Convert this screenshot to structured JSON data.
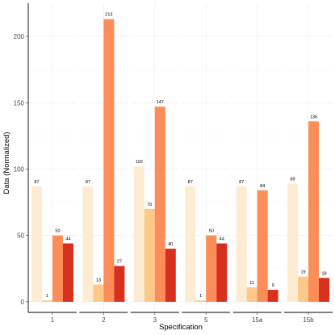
{
  "chart_data": {
    "type": "bar",
    "xlabel": "Specification",
    "ylabel": "Data (Normalized)",
    "categories": [
      "1",
      "2",
      "3",
      "5",
      "15a",
      "15b"
    ],
    "series": [
      {
        "color": "#fdebd2",
        "values": [
          87,
          87,
          102,
          87,
          87,
          89
        ],
        "labels": [
          "87",
          "87",
          "102",
          "87",
          "87",
          "89"
        ]
      },
      {
        "color": "#fdc98a",
        "values": [
          1,
          13,
          70,
          1,
          11,
          19
        ],
        "labels": [
          "1",
          "13",
          "70",
          "1",
          "11",
          "19"
        ]
      },
      {
        "color": "#fc8d59",
        "values": [
          50,
          213,
          147,
          50,
          84,
          136
        ],
        "labels": [
          "50",
          "213",
          "147",
          "50",
          "84",
          "136"
        ]
      },
      {
        "color": "#d7301f",
        "values": [
          44,
          27,
          40,
          44,
          9,
          18
        ],
        "labels": [
          "44",
          "27",
          "40",
          "44",
          "9",
          "18"
        ]
      }
    ],
    "ylim": [
      -8,
      225
    ],
    "yticks": [
      0,
      50,
      100,
      150,
      200
    ],
    "grid": true,
    "legend": "none"
  }
}
